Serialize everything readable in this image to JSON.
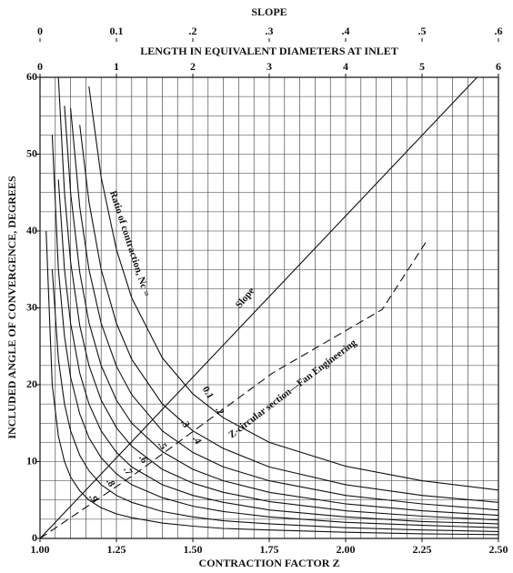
{
  "chart_data": {
    "type": "line",
    "title": "SLOPE",
    "top_axis_title": "LENGTH IN EQUIVALENT DIAMETERS AT INLET",
    "x_label": "CONTRACTION FACTOR Z",
    "y_label": "INCLUDED ANGLE OF CONVERGENCE, DEGREES",
    "annotation": "Ratio of contraction, Nc =",
    "xlim": [
      1.0,
      2.5
    ],
    "xticks": [
      {
        "value": 1.0,
        "label": "1.00"
      },
      {
        "value": 1.25,
        "label": "1.25"
      },
      {
        "value": 1.5,
        "label": "1.50"
      },
      {
        "value": 1.75,
        "label": "1.75"
      },
      {
        "value": 2.0,
        "label": "2.00"
      },
      {
        "value": 2.25,
        "label": "2.25"
      },
      {
        "value": 2.5,
        "label": "2.50"
      }
    ],
    "ylim": [
      0,
      60
    ],
    "yticks": [
      0,
      10,
      20,
      30,
      40,
      50,
      60
    ],
    "x_grid": [
      1.05,
      1.1,
      1.15,
      1.2,
      1.25,
      1.3,
      1.35,
      1.4,
      1.45,
      1.5,
      1.55,
      1.6,
      1.65,
      1.7,
      1.75,
      1.8,
      1.85,
      1.9,
      1.95,
      2.0,
      2.05,
      2.1,
      2.15,
      2.2,
      2.25,
      2.3,
      2.35,
      2.4,
      2.45
    ],
    "y_grid": [
      2.5,
      5,
      7.5,
      10,
      12.5,
      15,
      17.5,
      20,
      22.5,
      25,
      27.5,
      30,
      32.5,
      35,
      37.5,
      40,
      42.5,
      45,
      47.5,
      50,
      52.5,
      55,
      57.5
    ],
    "x2lim": [
      0,
      6
    ],
    "x2ticks": [
      0,
      1,
      2,
      3,
      4,
      5,
      6
    ],
    "x3lim": [
      0,
      0.6
    ],
    "x3ticks": [
      0,
      0.1,
      {
        "value": 0.2,
        "label": ".2"
      },
      {
        "value": 0.3,
        "label": ".3"
      },
      {
        "value": 0.4,
        "label": ".4"
      },
      {
        "value": 0.5,
        "label": ".5"
      },
      {
        "value": 0.6,
        "label": ".6"
      }
    ],
    "grid": true,
    "x": [
      1.02,
      1.04,
      1.06,
      1.08,
      1.1,
      1.13,
      1.16,
      1.2,
      1.25,
      1.3,
      1.4,
      1.5,
      1.6,
      1.75,
      2.0,
      2.25,
      2.5
    ],
    "series": [
      {
        "name": "0.1",
        "color": "#111",
        "values": [
          null,
          null,
          null,
          null,
          null,
          null,
          58.8,
          47,
          37.6,
          31.3,
          23.5,
          18.8,
          15.7,
          12.5,
          9.4,
          7.5,
          6.3
        ]
      },
      {
        "name": ".2",
        "color": "#111",
        "values": [
          null,
          null,
          null,
          null,
          null,
          53.8,
          43.8,
          35,
          28,
          23.3,
          17.5,
          14,
          11.7,
          9.3,
          7,
          5.6,
          4.7
        ]
      },
      {
        "name": ".3",
        "color": "#111",
        "values": [
          null,
          null,
          null,
          null,
          56,
          43.1,
          35,
          28,
          22.4,
          18.7,
          14,
          11.2,
          9.3,
          7.5,
          5.6,
          4.5,
          3.7
        ]
      },
      {
        "name": ".4",
        "color": "#111",
        "values": [
          null,
          null,
          null,
          56.3,
          45,
          34.6,
          28.1,
          22.5,
          18,
          15,
          11.3,
          9,
          7.5,
          6,
          4.5,
          3.6,
          3
        ]
      },
      {
        "name": ".5",
        "color": "#111",
        "values": [
          null,
          null,
          60,
          45,
          36,
          27.7,
          22.5,
          18,
          14.4,
          12,
          9,
          7.2,
          6,
          4.8,
          3.6,
          2.9,
          2.4
        ]
      },
      {
        "name": ".6",
        "color": "#111",
        "values": [
          null,
          null,
          46.7,
          35,
          28,
          21.5,
          17.5,
          14,
          11.2,
          9.3,
          7,
          5.6,
          4.7,
          3.7,
          2.8,
          2.2,
          1.9
        ]
      },
      {
        "name": ".7",
        "color": "#111",
        "values": [
          null,
          52.5,
          35,
          26.3,
          21,
          16.2,
          13.1,
          10.5,
          8.4,
          7,
          5.3,
          4.2,
          3.5,
          2.8,
          2.1,
          1.7,
          1.4
        ]
      },
      {
        "name": ".8",
        "color": "#111",
        "values": [
          null,
          35,
          23.3,
          17.5,
          14,
          10.8,
          8.8,
          7,
          5.6,
          4.7,
          3.5,
          2.8,
          2.3,
          1.9,
          1.4,
          1.1,
          0.9
        ]
      },
      {
        "name": ".9",
        "color": "#111",
        "values": [
          40,
          20,
          13.3,
          10,
          8,
          6.2,
          5,
          4,
          3.2,
          2.7,
          2,
          1.6,
          1.3,
          1.1,
          0.8,
          0.6,
          0.5
        ]
      },
      {
        "name": "Slope",
        "color": "#111",
        "x": [
          1.0,
          2.43
        ],
        "values": [
          0,
          60
        ]
      },
      {
        "name": "Z-circular section—Fan Engineering",
        "color": "#111",
        "style": "dashed",
        "x": [
          1.0,
          1.315,
          1.76,
          2.12,
          2.27
        ],
        "values": [
          0,
          8.5,
          21.5,
          29.8,
          39
        ]
      }
    ]
  }
}
